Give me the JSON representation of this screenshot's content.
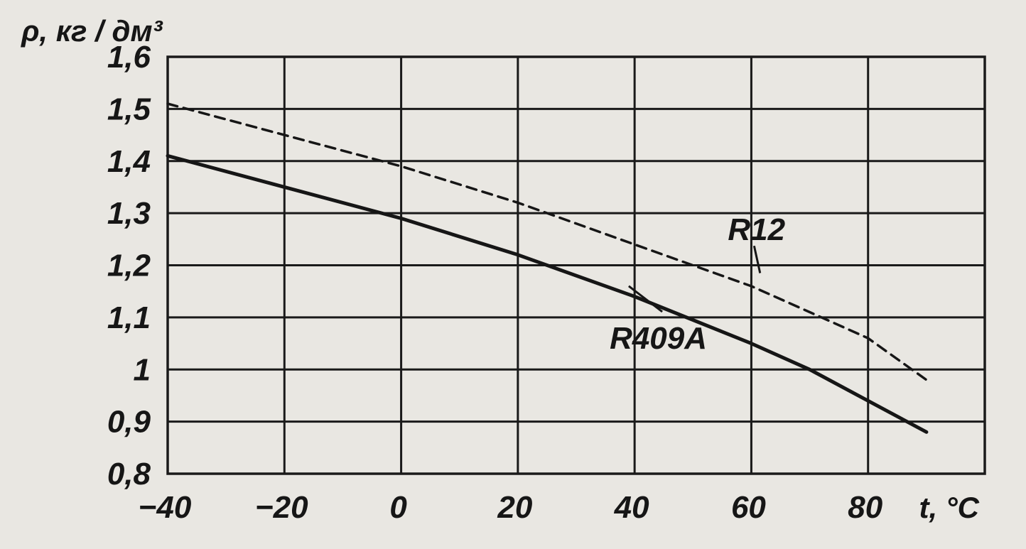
{
  "chart_data": {
    "type": "line",
    "title": "",
    "ylabel": "ρ, кг / дм³",
    "xlabel": "t, °C",
    "xlim": [
      -40,
      100
    ],
    "ylim": [
      0.8,
      1.6
    ],
    "grid": true,
    "x_ticks": [
      -40,
      -20,
      0,
      20,
      40,
      60,
      80
    ],
    "x_tick_labels": [
      "−40",
      "−20",
      "0",
      "20",
      "40",
      "60",
      "80"
    ],
    "y_ticks": [
      0.8,
      0.9,
      1.0,
      1.1,
      1.2,
      1.3,
      1.4,
      1.5,
      1.6
    ],
    "y_tick_labels": [
      "0,8",
      "0,9",
      "1",
      "1,1",
      "1,2",
      "1,3",
      "1,4",
      "1,5",
      "1,6"
    ],
    "series": [
      {
        "name": "R12",
        "style": "dashed",
        "x": [
          -40,
          -20,
          0,
          20,
          40,
          60,
          70,
          80,
          90
        ],
        "y": [
          1.51,
          1.45,
          1.39,
          1.32,
          1.24,
          1.16,
          1.11,
          1.06,
          0.98
        ],
        "label_at": [
          55,
          1.27
        ]
      },
      {
        "name": "R409A",
        "style": "solid",
        "x": [
          -40,
          -20,
          0,
          20,
          40,
          60,
          70,
          80,
          90
        ],
        "y": [
          1.41,
          1.35,
          1.29,
          1.22,
          1.14,
          1.05,
          1.0,
          0.94,
          0.88
        ],
        "label_at": [
          35,
          1.07
        ]
      }
    ],
    "line_color": "#161616",
    "grid_color": "#1a1a1a",
    "background_color": "#e9e7e2"
  }
}
